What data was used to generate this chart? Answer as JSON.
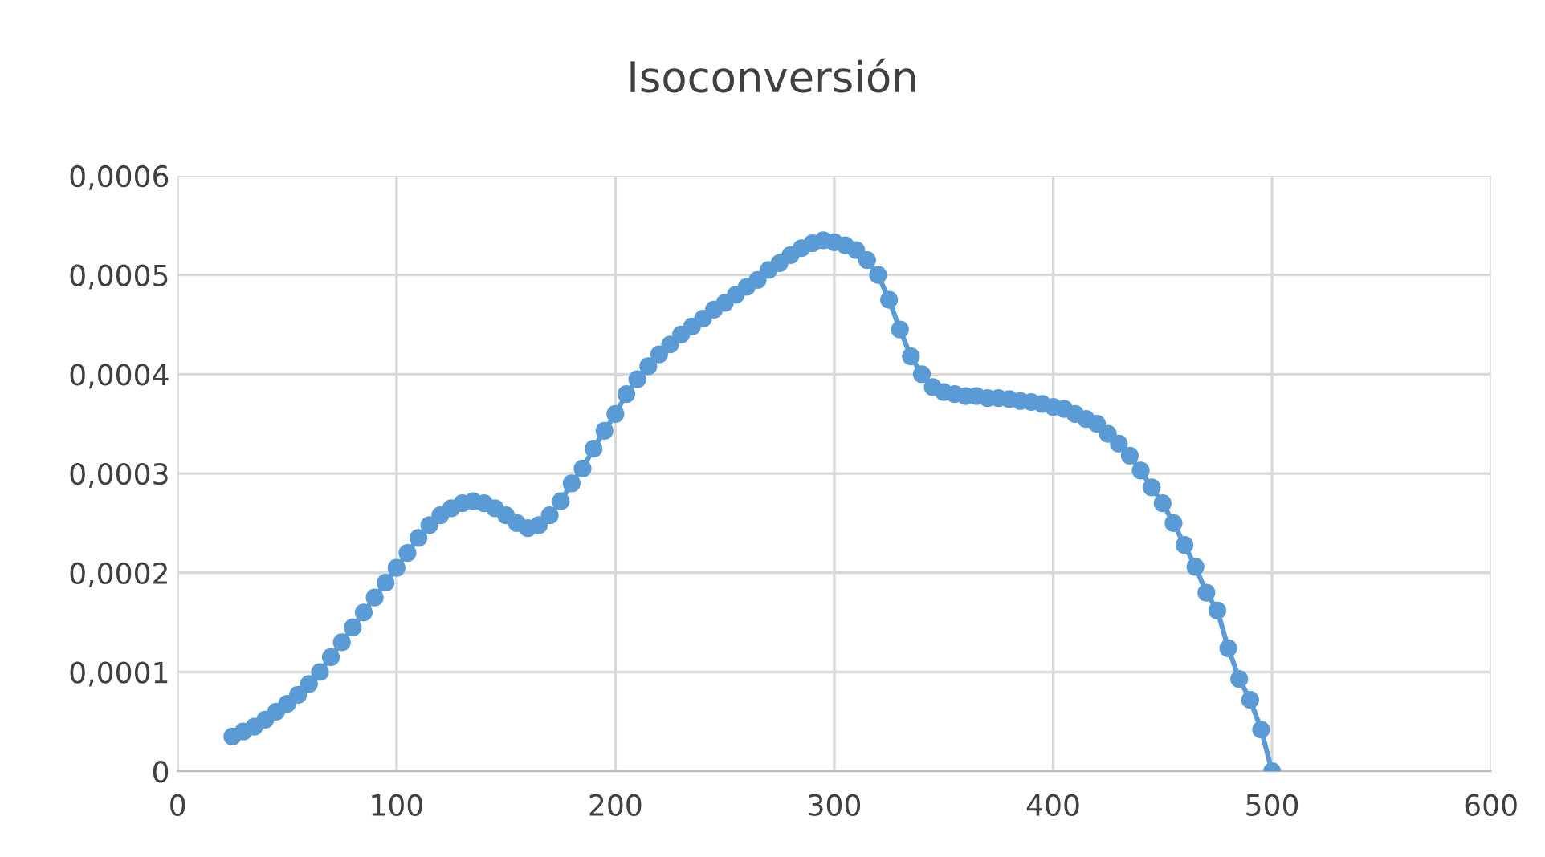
{
  "chart_data": {
    "type": "line",
    "title": "Isoconversión",
    "x": [
      25,
      30,
      35,
      40,
      45,
      50,
      55,
      60,
      65,
      70,
      75,
      80,
      85,
      90,
      95,
      100,
      105,
      110,
      115,
      120,
      125,
      130,
      135,
      140,
      145,
      150,
      155,
      160,
      165,
      170,
      175,
      180,
      185,
      190,
      195,
      200,
      205,
      210,
      215,
      220,
      225,
      230,
      235,
      240,
      245,
      250,
      255,
      260,
      265,
      270,
      275,
      280,
      285,
      290,
      295,
      300,
      305,
      310,
      315,
      320,
      325,
      330,
      335,
      340,
      345,
      350,
      355,
      360,
      365,
      370,
      375,
      380,
      385,
      390,
      395,
      400,
      405,
      410,
      415,
      420,
      425,
      430,
      435,
      440,
      445,
      450,
      455,
      460,
      465,
      470,
      475,
      480,
      485,
      490,
      495,
      500
    ],
    "series": [
      {
        "color": "#5b9bd5",
        "values": [
          3.5e-05,
          4e-05,
          4.5e-05,
          5.2e-05,
          6e-05,
          6.8e-05,
          7.7e-05,
          8.8e-05,
          0.0001,
          0.000115,
          0.00013,
          0.000145,
          0.00016,
          0.000175,
          0.00019,
          0.000205,
          0.00022,
          0.000235,
          0.000248,
          0.000258,
          0.000265,
          0.00027,
          0.000272,
          0.00027,
          0.000265,
          0.000258,
          0.00025,
          0.000245,
          0.000248,
          0.000258,
          0.000272,
          0.00029,
          0.000305,
          0.000325,
          0.000343,
          0.00036,
          0.00038,
          0.000395,
          0.000408,
          0.00042,
          0.00043,
          0.00044,
          0.000448,
          0.000456,
          0.000465,
          0.000472,
          0.00048,
          0.000488,
          0.000495,
          0.000505,
          0.000512,
          0.00052,
          0.000527,
          0.000532,
          0.000535,
          0.000533,
          0.00053,
          0.000525,
          0.000515,
          0.0005,
          0.000475,
          0.000445,
          0.000418,
          0.0004,
          0.000387,
          0.000382,
          0.00038,
          0.000378,
          0.000378,
          0.000376,
          0.000376,
          0.000375,
          0.000373,
          0.000372,
          0.00037,
          0.000367,
          0.000365,
          0.00036,
          0.000355,
          0.00035,
          0.00034,
          0.00033,
          0.000318,
          0.000303,
          0.000286,
          0.00027,
          0.00025,
          0.000228,
          0.000206,
          0.00018,
          0.000162,
          0.000124,
          9.3e-05,
          7.2e-05,
          4.2e-05,
          0
        ]
      }
    ],
    "xlim": [
      0,
      600
    ],
    "xticks": [
      0,
      100,
      200,
      300,
      400,
      500,
      600
    ],
    "ylim": [
      0,
      0.0006
    ],
    "yticks": [
      0,
      {
        "value": 0.0001,
        "label": "0,0001"
      },
      {
        "value": 0.0002,
        "label": "0,0002"
      },
      {
        "value": 0.0003,
        "label": "0,0003"
      },
      {
        "value": 0.0004,
        "label": "0,0004"
      },
      {
        "value": 0.0005,
        "label": "0,0005"
      },
      {
        "value": 0.0006,
        "label": "0,0006"
      }
    ],
    "grid": true,
    "marker": "circle",
    "line_style": "solid",
    "legend": false
  }
}
